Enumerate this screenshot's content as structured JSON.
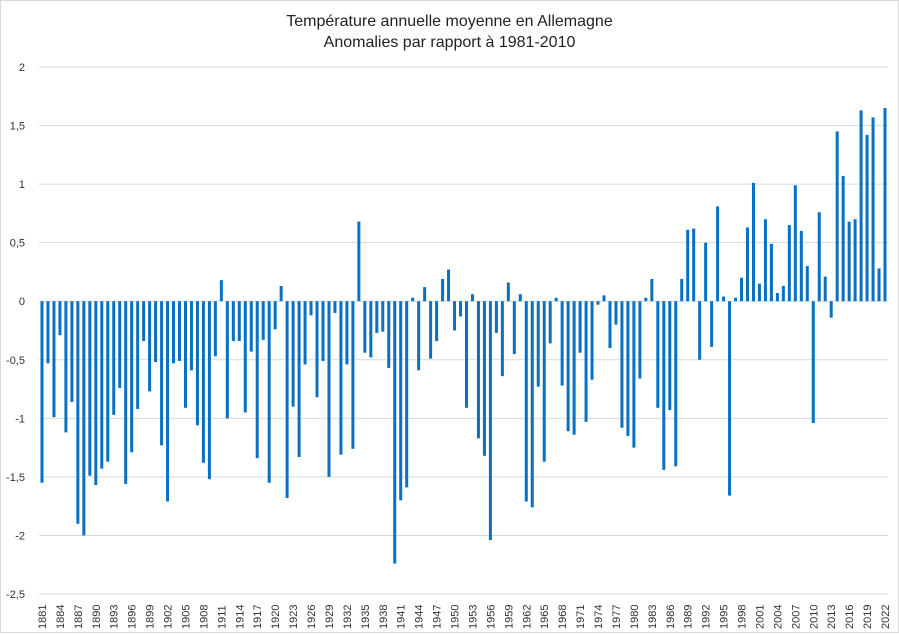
{
  "chart_data": {
    "type": "bar",
    "title": "Température annuelle moyenne en Allemagne",
    "subtitle": "Anomalies par rapport à 1981-2010",
    "xlabel": "",
    "ylabel": "",
    "ylim": [
      -2.5,
      2
    ],
    "yticks": [
      "2",
      "1,5",
      "1",
      "0,5",
      "0",
      "-0,5",
      "-1",
      "-1,5",
      "-2",
      "-2,5"
    ],
    "grid": true,
    "bar_color": "#0a70c4",
    "start_year": 1881,
    "tick_every": 3,
    "values": [
      -1.55,
      -0.53,
      -0.99,
      -0.29,
      -1.12,
      -0.86,
      -1.9,
      -2.0,
      -1.49,
      -1.57,
      -1.43,
      -1.37,
      -0.97,
      -0.74,
      -1.56,
      -1.29,
      -0.92,
      -0.34,
      -0.77,
      -0.52,
      -1.23,
      -1.71,
      -0.53,
      -0.51,
      -0.91,
      -0.59,
      -1.06,
      -1.38,
      -1.52,
      -0.47,
      0.18,
      -1.0,
      -0.34,
      -0.34,
      -0.95,
      -0.43,
      -1.34,
      -0.33,
      -1.55,
      -0.24,
      0.13,
      -1.68,
      -0.9,
      -1.33,
      -0.54,
      -0.12,
      -0.82,
      -0.51,
      -1.5,
      -0.1,
      -1.31,
      -0.54,
      -1.26,
      0.68,
      -0.44,
      -0.48,
      -0.27,
      -0.26,
      -0.57,
      -2.24,
      -1.7,
      -1.59,
      0.03,
      -0.59,
      0.12,
      -0.49,
      -0.34,
      0.19,
      0.27,
      -0.25,
      -0.13,
      -0.91,
      0.06,
      -1.17,
      -1.32,
      -2.04,
      -0.27,
      -0.64,
      0.16,
      -0.45,
      0.06,
      -1.71,
      -1.76,
      -0.73,
      -1.37,
      -0.36,
      0.03,
      -0.72,
      -1.11,
      -1.14,
      -0.44,
      -1.03,
      -0.67,
      -0.03,
      0.05,
      -0.4,
      -0.2,
      -1.08,
      -1.15,
      -1.25,
      -0.66,
      0.03,
      0.19,
      -0.91,
      -1.44,
      -0.93,
      -1.41,
      0.19,
      0.61,
      0.62,
      -0.5,
      0.5,
      -0.39,
      0.81,
      0.04,
      -1.66,
      0.03,
      0.2,
      0.63,
      1.01,
      0.15,
      0.7,
      0.49,
      0.07,
      0.13,
      0.65,
      0.99,
      0.6,
      0.3,
      -1.04,
      0.76,
      0.21,
      -0.14,
      1.45,
      1.07,
      0.68,
      0.7,
      1.63,
      1.42,
      1.57,
      0.28,
      1.65
    ]
  }
}
